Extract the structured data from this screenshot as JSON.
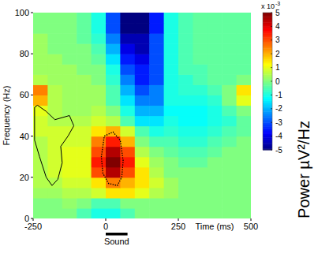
{
  "chart_data": {
    "type": "heatmap",
    "x_label": "Time (ms)",
    "y_label": "Frequency (Hz)",
    "colorbar_label": "Power µV²/Hz",
    "colorbar_scale_label": "x 10",
    "colorbar_scale_exponent": "-3",
    "xlim": [
      -250,
      500
    ],
    "ylim": [
      0,
      100
    ],
    "xticks": [
      -250,
      0,
      250,
      500
    ],
    "yticks": [
      0,
      20,
      40,
      60,
      80,
      100
    ],
    "colorbar_range": [
      -5,
      5
    ],
    "colorbar_ticks": [
      -5,
      -4,
      -3,
      -2,
      -1,
      0,
      1,
      2,
      3,
      4,
      5
    ],
    "x": [
      -225,
      -175,
      -125,
      -75,
      -25,
      25,
      75,
      125,
      175,
      225,
      275,
      325,
      375,
      425,
      475
    ],
    "y": [
      2.5,
      7.5,
      12.5,
      17.5,
      22.5,
      27.5,
      32.5,
      37.5,
      42.5,
      47.5,
      52.5,
      57.5,
      62.5,
      67.5,
      72.5,
      77.5,
      82.5,
      87.5,
      92.5,
      97.5
    ],
    "z": [
      [
        0,
        0,
        0,
        -0.5,
        -1,
        -1,
        -0.5,
        0,
        0,
        0,
        0,
        0,
        0,
        0,
        0
      ],
      [
        0,
        0,
        0.2,
        0,
        -0.5,
        -0.5,
        0,
        0,
        0,
        0,
        0,
        0,
        0,
        0,
        0
      ],
      [
        0.3,
        0.3,
        0.5,
        0.5,
        0.8,
        1.5,
        1.5,
        1,
        0.5,
        0.3,
        0,
        0,
        0,
        0,
        0
      ],
      [
        0.5,
        0.5,
        0.8,
        0.8,
        1.5,
        2.5,
        2,
        1.5,
        0.8,
        0.3,
        0,
        0,
        0,
        0,
        0
      ],
      [
        0.5,
        0.8,
        1,
        1,
        3,
        4.5,
        3,
        1.5,
        0.5,
        0,
        0,
        0,
        0,
        0,
        0
      ],
      [
        0.5,
        0.8,
        1,
        1,
        3.5,
        5,
        3.5,
        1,
        0.3,
        0,
        -0.3,
        -0.3,
        0,
        0,
        0
      ],
      [
        0.5,
        0.8,
        1,
        1,
        3,
        4.5,
        3,
        0.5,
        0,
        -0.3,
        -0.5,
        -0.5,
        -0.3,
        0,
        0
      ],
      [
        0.5,
        0.8,
        0.8,
        0.8,
        2.5,
        3.5,
        2,
        0,
        -0.5,
        -0.5,
        -0.8,
        -0.8,
        -0.5,
        -0.3,
        0
      ],
      [
        0.8,
        0.8,
        0.8,
        0.8,
        1.5,
        2,
        0.8,
        -0.5,
        -1,
        -0.8,
        -1,
        -1,
        -0.8,
        -0.5,
        -0.3
      ],
      [
        0.8,
        0.5,
        0.5,
        0.5,
        0.8,
        0.5,
        -0.5,
        -1.5,
        -1.5,
        -1,
        -1.2,
        -1.2,
        -1,
        -0.8,
        -0.3
      ],
      [
        1,
        0.5,
        0.3,
        0.3,
        0.5,
        0,
        -1,
        -2,
        -2,
        -1.2,
        -1.2,
        -1.2,
        -1,
        -0.5,
        0
      ],
      [
        2,
        0.5,
        0.3,
        0.3,
        0.3,
        -0.5,
        -1.5,
        -2.5,
        -2.5,
        -1,
        -1,
        -1,
        -0.8,
        0,
        1
      ],
      [
        2.5,
        0.5,
        0.3,
        0.3,
        0.3,
        -0.5,
        -2,
        -3,
        -2.5,
        -1,
        -0.8,
        -0.8,
        -0.5,
        0,
        1.5
      ],
      [
        0.5,
        0.3,
        0.3,
        0.3,
        0,
        -0.8,
        -2.5,
        -3.5,
        -3,
        -1,
        -0.8,
        -0.5,
        -0.3,
        -0.3,
        0
      ],
      [
        0.3,
        0.3,
        0.3,
        0,
        0,
        -1,
        -3,
        -3.5,
        -3,
        -1,
        -0.5,
        -0.5,
        -0.3,
        -0.3,
        -0.3
      ],
      [
        0.3,
        0.3,
        0,
        0,
        -0.3,
        -1.5,
        -3.5,
        -4,
        -3,
        -1,
        -0.5,
        -0.3,
        -0.3,
        -0.3,
        -0.3
      ],
      [
        0.3,
        0,
        0,
        0,
        -0.5,
        -2,
        -4,
        -4.5,
        -3,
        -1,
        -0.5,
        -0.3,
        -0.3,
        -0.3,
        -0.3
      ],
      [
        0.3,
        0,
        0,
        -0.3,
        -0.8,
        -2.5,
        -4.5,
        -4.5,
        -3,
        -1,
        -0.5,
        -0.3,
        -0.3,
        -0.3,
        -0.3
      ],
      [
        0,
        0,
        0,
        -0.3,
        -1,
        -3,
        -5,
        -5,
        -3.5,
        -1,
        -0.5,
        -0.3,
        -0.3,
        -0.3,
        -0.3
      ],
      [
        0,
        0,
        0,
        -0.3,
        -1,
        -3,
        -5,
        -5,
        -3.5,
        -1,
        -0.5,
        -0.3,
        -0.3,
        -0.3,
        -0.3
      ]
    ],
    "contours": [
      {
        "line_style": "solid",
        "x": [
          -245,
          -245,
          -228,
          -205,
          -185,
          -165,
          -150,
          -155,
          -130,
          -110,
          -125,
          -175,
          -205,
          -235,
          -245
        ],
        "y": [
          54,
          38,
          30,
          20,
          16,
          19,
          27,
          35,
          40,
          45,
          50,
          48,
          52,
          55,
          54
        ]
      },
      {
        "line_style": "dotted",
        "x": [
          -5,
          25,
          50,
          60,
          55,
          40,
          10,
          -10,
          -15,
          -5
        ],
        "y": [
          40,
          42,
          38,
          28,
          20,
          16,
          17,
          22,
          30,
          40
        ]
      }
    ],
    "annotations": [
      {
        "text": "Sound",
        "x": [
          0,
          75
        ]
      }
    ]
  }
}
